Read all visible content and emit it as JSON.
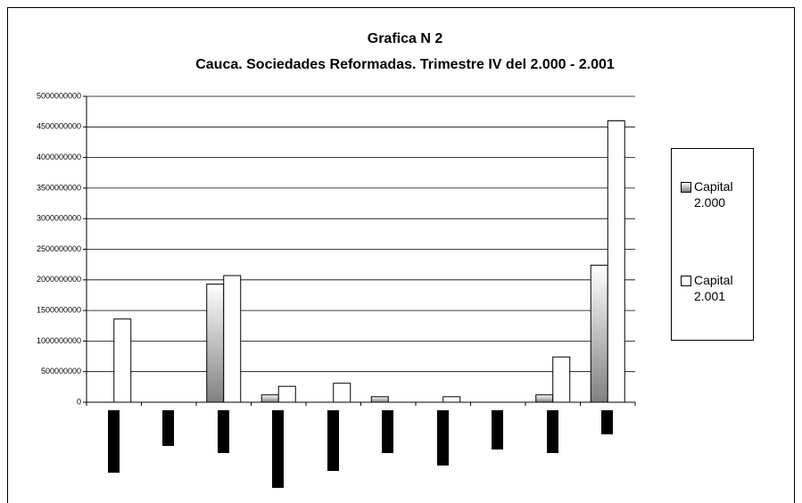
{
  "chart_data": {
    "type": "bar",
    "title": "Grafica N 2",
    "subtitle": "Cauca. Sociedades Reformadas. Trimestre IV del 2.000 - 2.001",
    "categories": [
      null,
      null,
      null,
      null,
      null,
      null,
      null,
      null,
      null,
      null
    ],
    "series": [
      {
        "name": "Capital 2.000",
        "color": "#808080",
        "values": [
          0,
          0,
          1930000000,
          120000000,
          0,
          90000000,
          0,
          0,
          120000000,
          2240000000
        ]
      },
      {
        "name": "Capital 2.001",
        "color": "#ffffff",
        "values": [
          1360000000,
          0,
          2070000000,
          260000000,
          310000000,
          0,
          90000000,
          0,
          740000000,
          4600000000
        ]
      }
    ],
    "ylim": [
      0,
      5000000000
    ],
    "yticks": [
      0,
      500000000,
      1000000000,
      1500000000,
      2000000000,
      2500000000,
      3000000000,
      3500000000,
      4000000000,
      4500000000,
      5000000000
    ],
    "grid": true,
    "legend": "right"
  }
}
